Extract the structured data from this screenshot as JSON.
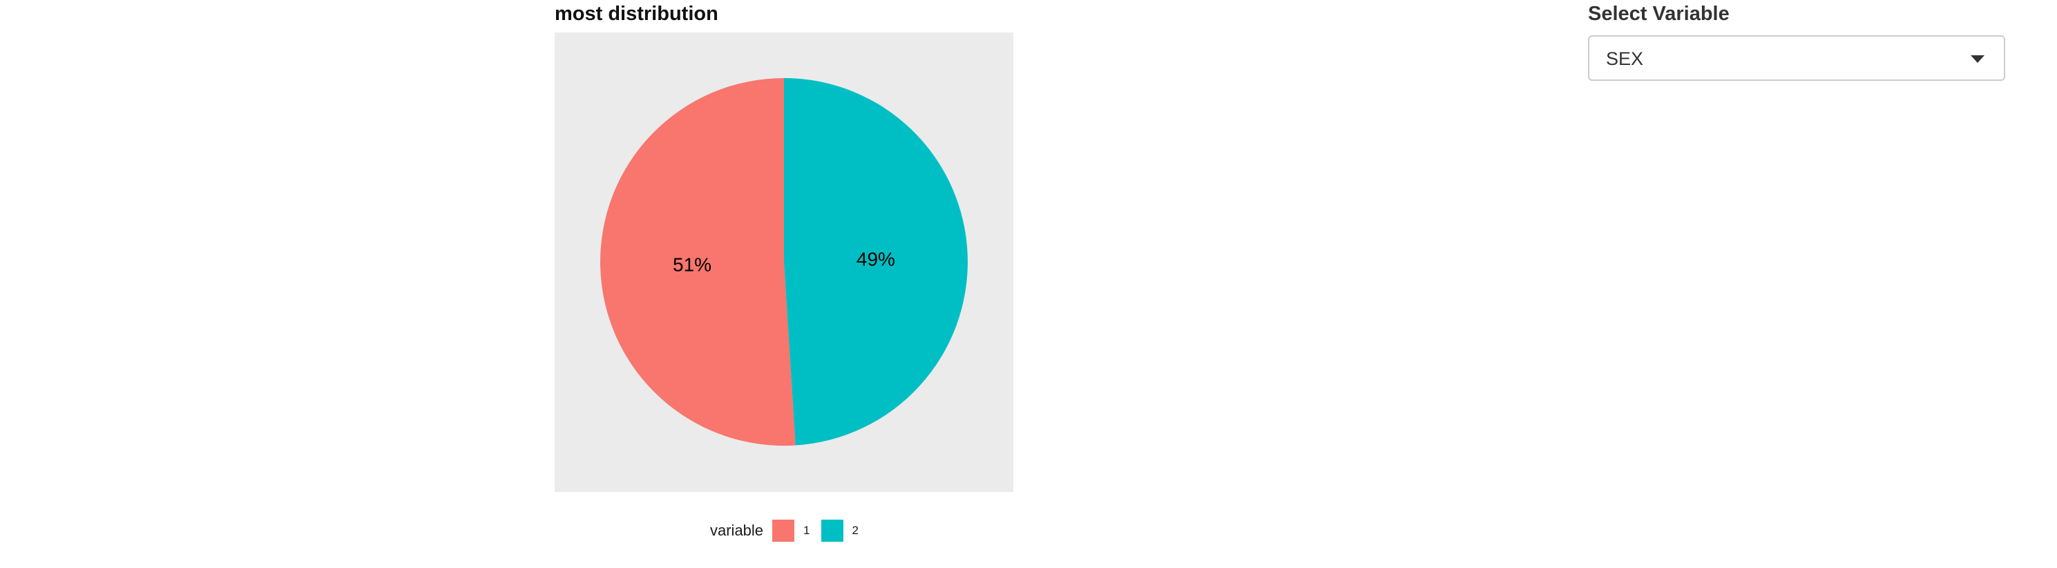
{
  "chart_data": {
    "type": "pie",
    "title": "most distribution",
    "legend_title": "variable",
    "legend_position": "bottom",
    "categories": [
      "1",
      "2"
    ],
    "values": [
      51,
      49
    ],
    "labels": [
      "51%",
      "49%"
    ],
    "colors": [
      "#f8766d",
      "#00bfc4"
    ],
    "background": "#ebebeb"
  },
  "controls": {
    "select_label": "Select Variable",
    "select_value": "SEX",
    "select_icon": "caret-down-icon"
  }
}
